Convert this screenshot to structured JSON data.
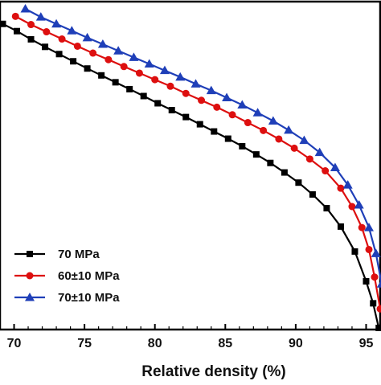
{
  "chart_data": {
    "type": "line",
    "title": "",
    "xlabel": "Relative density (%)",
    "ylabel": "",
    "xlim": [
      69,
      96
    ],
    "ylim": [
      0,
      1
    ],
    "x_ticks": [
      70,
      75,
      80,
      85,
      90,
      95
    ],
    "x_tick_labels": [
      "70",
      "75",
      "80",
      "85",
      "90",
      "95"
    ],
    "grid": false,
    "legend_position": "bottom-left",
    "series": [
      {
        "name": "70 MPa",
        "color": "#000000",
        "marker": "square",
        "x": [
          69.2,
          70.2,
          71.2,
          72.2,
          73.2,
          74.2,
          75.2,
          76.2,
          77.2,
          78.2,
          79.2,
          80.2,
          81.2,
          82.2,
          83.2,
          84.2,
          85.2,
          86.2,
          87.2,
          88.2,
          89.2,
          90.2,
          91.2,
          92.2,
          93.2,
          94.2,
          95.0,
          95.5,
          95.9
        ],
        "y": [
          0.932,
          0.91,
          0.885,
          0.862,
          0.84,
          0.818,
          0.796,
          0.775,
          0.754,
          0.733,
          0.712,
          0.69,
          0.669,
          0.648,
          0.626,
          0.604,
          0.582,
          0.559,
          0.534,
          0.508,
          0.479,
          0.448,
          0.412,
          0.37,
          0.314,
          0.238,
          0.147,
          0.08,
          0.005
        ]
      },
      {
        "name": "60±10 MPa",
        "color": "#dd0f0f",
        "marker": "circle",
        "x": [
          70.1,
          71.2,
          72.3,
          73.4,
          74.5,
          75.6,
          76.7,
          77.8,
          78.9,
          80.0,
          81.1,
          82.2,
          83.3,
          84.4,
          85.5,
          86.6,
          87.7,
          88.8,
          89.9,
          91.0,
          92.1,
          93.2,
          94.0,
          94.7,
          95.2,
          95.6,
          96.0
        ],
        "y": [
          0.955,
          0.93,
          0.908,
          0.886,
          0.864,
          0.843,
          0.823,
          0.802,
          0.782,
          0.762,
          0.742,
          0.72,
          0.699,
          0.678,
          0.655,
          0.631,
          0.607,
          0.581,
          0.553,
          0.52,
          0.484,
          0.431,
          0.375,
          0.311,
          0.244,
          0.16,
          0.063
        ]
      },
      {
        "name": "70±10 MPa",
        "color": "#1f3fb8",
        "marker": "triangle",
        "x": [
          70.8,
          71.9,
          73.0,
          74.1,
          75.2,
          76.3,
          77.4,
          78.5,
          79.6,
          80.7,
          81.8,
          82.9,
          84.0,
          85.1,
          86.2,
          87.3,
          88.4,
          89.5,
          90.6,
          91.7,
          92.8,
          93.7,
          94.5,
          95.2,
          95.7,
          96.1
        ],
        "y": [
          0.978,
          0.953,
          0.932,
          0.911,
          0.89,
          0.87,
          0.85,
          0.83,
          0.81,
          0.79,
          0.77,
          0.749,
          0.729,
          0.707,
          0.685,
          0.661,
          0.636,
          0.608,
          0.577,
          0.54,
          0.494,
          0.441,
          0.38,
          0.311,
          0.232,
          0.139
        ]
      }
    ]
  }
}
